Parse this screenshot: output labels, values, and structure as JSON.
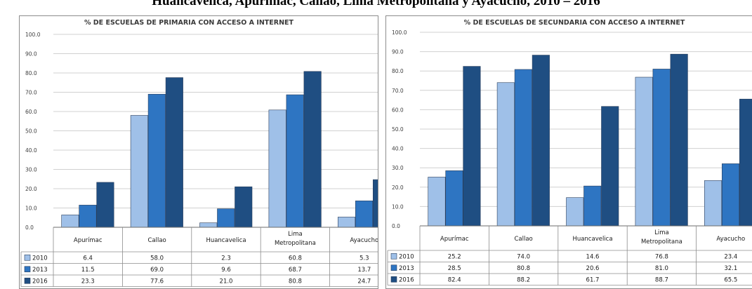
{
  "heading": "Huancavelica, Apurímac, Callao, Lima Metropolitana y Ayacucho, 2010 – 2016",
  "colors": {
    "2010": "#9fc0e8",
    "2013": "#2e75c2",
    "2016": "#1f4e82",
    "grid": "#d0d0d0",
    "border": "#8c8c8c"
  },
  "chart_data": [
    {
      "type": "bar",
      "title": "% DE ESCUELAS DE PRIMARIA CON ACCESO A INTERNET",
      "categories": [
        "Apurímac",
        "Callao",
        "Huancavelica",
        "Lima Metropolitana",
        "Ayacucho"
      ],
      "category_lines": [
        [
          "Apurímac"
        ],
        [
          "Callao"
        ],
        [
          "Huancavelica"
        ],
        [
          "Lima",
          "Metropolitana"
        ],
        [
          "Ayacucho"
        ]
      ],
      "series": [
        {
          "name": "2010",
          "values": [
            6.4,
            58.0,
            2.3,
            60.8,
            5.3
          ],
          "labels": [
            "6.4",
            "58.0",
            "2.3",
            "60.8",
            "5.3"
          ]
        },
        {
          "name": "2013",
          "values": [
            11.5,
            69.0,
            9.6,
            68.7,
            13.7
          ],
          "labels": [
            "11.5",
            "69.0",
            "9.6",
            "68.7",
            "13.7"
          ]
        },
        {
          "name": "2016",
          "values": [
            23.3,
            77.6,
            21.0,
            80.8,
            24.7
          ],
          "labels": [
            "23.3",
            "77.6",
            "21.0",
            "80.8",
            "24.7"
          ]
        }
      ],
      "ylim": [
        0,
        100
      ],
      "yticks": [
        "0.0",
        "10.0",
        "20.0",
        "30.0",
        "40.0",
        "50.0",
        "60.0",
        "70.0",
        "80.0",
        "90.0",
        "100.0"
      ],
      "grid": true,
      "legend": "data-table"
    },
    {
      "type": "bar",
      "title": "% DE ESCUELAS DE SECUNDARIA CON ACCESO A INTERNET",
      "categories": [
        "Apurímac",
        "Callao",
        "Huancavelica",
        "Lima Metropolitana",
        "Ayacucho"
      ],
      "category_lines": [
        [
          "Apurímac"
        ],
        [
          "Callao"
        ],
        [
          "Huancavelica"
        ],
        [
          "Lima",
          "Metropolitana"
        ],
        [
          "Ayacucho"
        ]
      ],
      "series": [
        {
          "name": "2010",
          "values": [
            25.2,
            74.0,
            14.6,
            76.8,
            23.4
          ],
          "labels": [
            "25.2",
            "74.0",
            "14.6",
            "76.8",
            "23.4"
          ]
        },
        {
          "name": "2013",
          "values": [
            28.5,
            80.8,
            20.6,
            81.0,
            32.1
          ],
          "labels": [
            "28.5",
            "80.8",
            "20.6",
            "81.0",
            "32.1"
          ]
        },
        {
          "name": "2016",
          "values": [
            82.4,
            88.2,
            61.7,
            88.7,
            65.5
          ],
          "labels": [
            "82.4",
            "88.2",
            "61.7",
            "88.7",
            "65.5"
          ]
        }
      ],
      "ylim": [
        0,
        100
      ],
      "yticks": [
        "0.0",
        "10.0",
        "20.0",
        "30.0",
        "40.0",
        "50.0",
        "60.0",
        "70.0",
        "80.0",
        "90.0",
        "100.0"
      ],
      "grid": true,
      "legend": "data-table"
    }
  ]
}
